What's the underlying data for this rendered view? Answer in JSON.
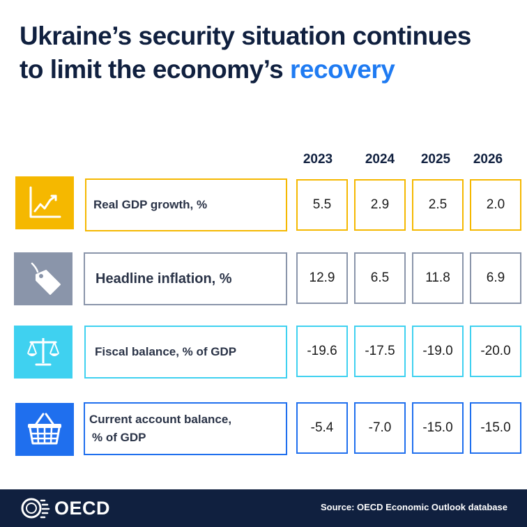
{
  "title": {
    "line1": "Ukraine’s security situation continues",
    "line2_plain": "to limit the economy’s ",
    "line2_accent": "recovery"
  },
  "years": [
    "2023",
    "2024",
    "2025",
    "2026"
  ],
  "rows": [
    {
      "icon": "line-chart-icon",
      "label": "Real GDP growth, %",
      "values": [
        "5.5",
        "2.9",
        "2.5",
        "2.0"
      ],
      "color": "#f5b800"
    },
    {
      "icon": "price-tag-icon",
      "label": "Headline inflation, %",
      "values": [
        "12.9",
        "6.5",
        "11.8",
        "6.9"
      ],
      "color": "#8a95aa"
    },
    {
      "icon": "balance-scale-icon",
      "label": "Fiscal balance, % of GDP",
      "values": [
        "-19.6",
        "-17.5",
        "-19.0",
        "-20.0"
      ],
      "color": "#3fd1f0"
    },
    {
      "icon": "shopping-basket-icon",
      "label": "Current account balance,",
      "label_line2": "% of GDP",
      "values": [
        "-5.4",
        "-7.0",
        "-15.0",
        "-15.0"
      ],
      "color": "#1f6fee"
    }
  ],
  "footer": {
    "logo": "OECD",
    "source": "Source: OECD Economic Outlook database"
  }
}
